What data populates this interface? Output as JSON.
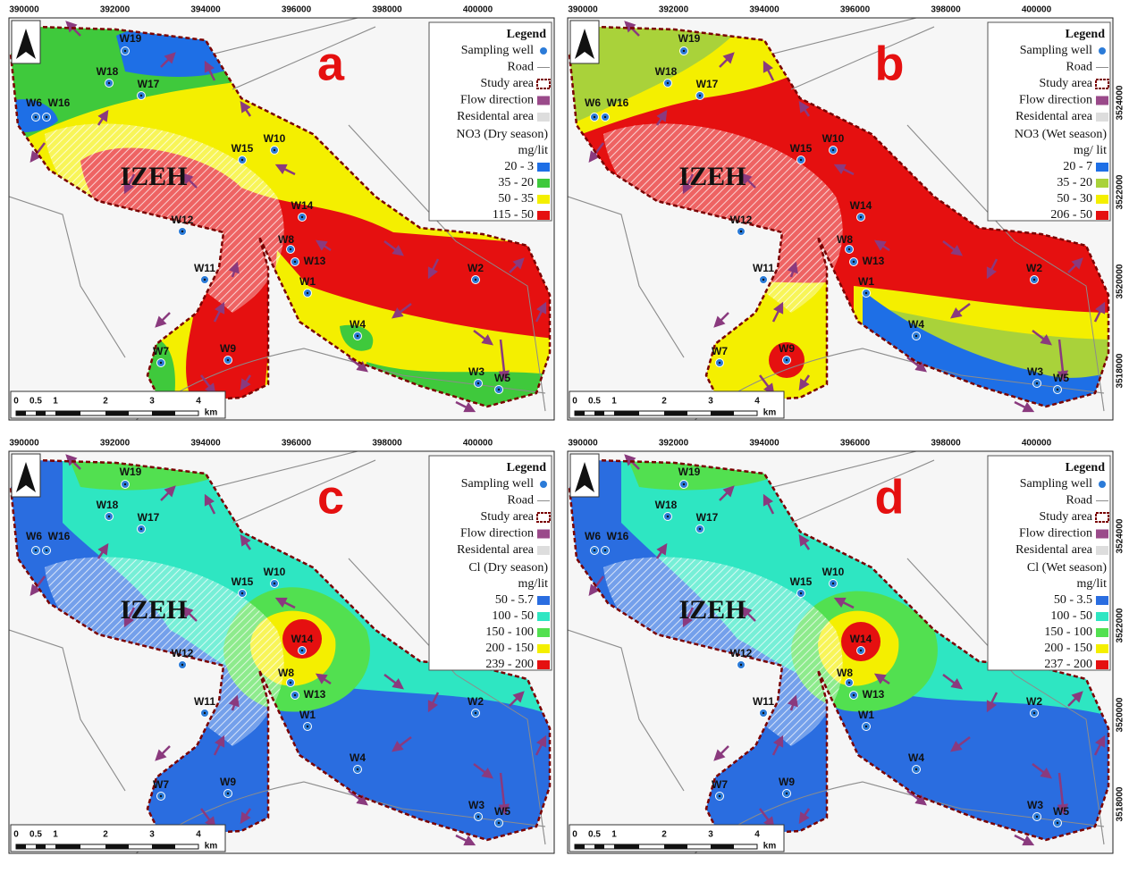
{
  "panels": [
    {
      "letter": "a",
      "x_ticks": [
        "390000",
        "392000",
        "394000",
        "396000",
        "398000",
        "400000"
      ],
      "legend": {
        "title": "Legend",
        "items": [
          "Sampling well",
          "Road",
          "Study area",
          "Flow direction",
          "Residental area"
        ],
        "parameter": "NO3 (Dry season)",
        "unit": "mg/lit",
        "classes": [
          {
            "label": "20 - 3",
            "color": "#1e6fe6"
          },
          {
            "label": "35 - 20",
            "color": "#3fc93c"
          },
          {
            "label": "50 - 35",
            "color": "#f4ef00"
          },
          {
            "label": "115 - 50",
            "color": "#e51010"
          }
        ]
      },
      "city": "IZEH",
      "wells": [
        "W1",
        "W2",
        "W3",
        "W4",
        "W5",
        "W6",
        "W7",
        "W8",
        "W9",
        "W10",
        "W11",
        "W12",
        "W13",
        "W14",
        "W15",
        "W16",
        "W17",
        "W18",
        "W19"
      ],
      "scale": [
        "0",
        "0.5",
        "1",
        "2",
        "3",
        "4",
        "km"
      ]
    },
    {
      "letter": "b",
      "x_ticks": [
        "390000",
        "392000",
        "394000",
        "396000",
        "398000",
        "400000"
      ],
      "y_ticks": [
        "3524000",
        "3522000",
        "3520000",
        "3518000"
      ],
      "legend": {
        "title": "Legend",
        "items": [
          "Sampling well",
          "Road",
          "Study area",
          "Flow direction",
          "Residental area"
        ],
        "parameter": "NO3 (Wet season)",
        "unit": "mg/ lit",
        "classes": [
          {
            "label": "20 - 7",
            "color": "#1e6fe6"
          },
          {
            "label": "35 - 20",
            "color": "#a9d23a"
          },
          {
            "label": "50 - 30",
            "color": "#f4ef00"
          },
          {
            "label": "206 - 50",
            "color": "#e51010"
          }
        ]
      },
      "city": "IZEH",
      "wells": [
        "W1",
        "W2",
        "W3",
        "W4",
        "W5",
        "W6",
        "W7",
        "W8",
        "W9",
        "W10",
        "W11",
        "W12",
        "W13",
        "W14",
        "W15",
        "W16",
        "W17",
        "W18",
        "W19"
      ],
      "scale": [
        "0",
        "0.5",
        "1",
        "2",
        "3",
        "4",
        "km"
      ]
    },
    {
      "letter": "c",
      "x_ticks": [
        "390000",
        "392000",
        "394000",
        "396000",
        "398000",
        "400000"
      ],
      "legend": {
        "title": "Legend",
        "items": [
          "Sampling well",
          "Road",
          "Study area",
          "Flow direction",
          "Residental area"
        ],
        "parameter": "Cl (Dry season)",
        "unit": "mg/lit",
        "classes": [
          {
            "label": "50 - 5.7",
            "color": "#2a6de0"
          },
          {
            "label": "100 - 50",
            "color": "#2ee6c2"
          },
          {
            "label": "150 - 100",
            "color": "#52e050"
          },
          {
            "label": "200 - 150",
            "color": "#f4ef00"
          },
          {
            "label": "239 - 200",
            "color": "#e51010"
          }
        ]
      },
      "city": "IZEH",
      "wells": [
        "W1",
        "W2",
        "W3",
        "W4",
        "W5",
        "W6",
        "W7",
        "W8",
        "W9",
        "W10",
        "W11",
        "W12",
        "W13",
        "W14",
        "W15",
        "W16",
        "W17",
        "W18",
        "W19"
      ],
      "scale": [
        "0",
        "0.5",
        "1",
        "2",
        "3",
        "4",
        "km"
      ]
    },
    {
      "letter": "d",
      "x_ticks": [
        "390000",
        "392000",
        "394000",
        "396000",
        "398000",
        "400000"
      ],
      "y_ticks": [
        "3524000",
        "3522000",
        "3520000",
        "3518000"
      ],
      "legend": {
        "title": "Legend",
        "items": [
          "Sampling well",
          "Road",
          "Study area",
          "Flow direction",
          "Residental area"
        ],
        "parameter": "Cl (Wet season)",
        "unit": "mg/lit",
        "classes": [
          {
            "label": "50 - 3.5",
            "color": "#2a6de0"
          },
          {
            "label": "100 - 50",
            "color": "#2ee6c2"
          },
          {
            "label": "150 - 100",
            "color": "#52e050"
          },
          {
            "label": "200 - 150",
            "color": "#f4ef00"
          },
          {
            "label": "237 - 200",
            "color": "#e51010"
          }
        ]
      },
      "city": "IZEH",
      "wells": [
        "W1",
        "W2",
        "W3",
        "W4",
        "W5",
        "W6",
        "W7",
        "W8",
        "W9",
        "W10",
        "W11",
        "W12",
        "W13",
        "W14",
        "W15",
        "W16",
        "W17",
        "W18",
        "W19"
      ],
      "scale": [
        "0",
        "0.5",
        "1",
        "2",
        "3",
        "4",
        "km"
      ]
    }
  ]
}
